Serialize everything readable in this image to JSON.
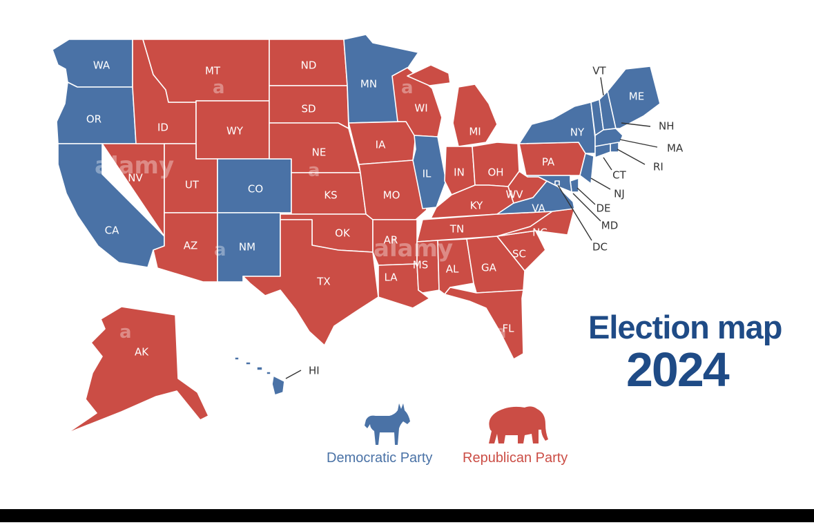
{
  "colors": {
    "democratic": "#4a72a6",
    "republican": "#cb4d45",
    "title": "#1f4b86",
    "border": "#ffffff"
  },
  "title": {
    "line1": "Election map",
    "line2": "2024"
  },
  "legend": {
    "democratic": {
      "label": "Democratic Party",
      "icon": "donkey-icon"
    },
    "republican": {
      "label": "Republican Party",
      "icon": "elephant-icon"
    }
  },
  "states": [
    {
      "code": "WA",
      "party": "D"
    },
    {
      "code": "OR",
      "party": "D"
    },
    {
      "code": "CA",
      "party": "D"
    },
    {
      "code": "NV",
      "party": "R"
    },
    {
      "code": "ID",
      "party": "R"
    },
    {
      "code": "MT",
      "party": "R"
    },
    {
      "code": "WY",
      "party": "R"
    },
    {
      "code": "UT",
      "party": "R"
    },
    {
      "code": "AZ",
      "party": "R"
    },
    {
      "code": "CO",
      "party": "D"
    },
    {
      "code": "NM",
      "party": "D"
    },
    {
      "code": "ND",
      "party": "R"
    },
    {
      "code": "SD",
      "party": "R"
    },
    {
      "code": "NE",
      "party": "R"
    },
    {
      "code": "KS",
      "party": "R"
    },
    {
      "code": "OK",
      "party": "R"
    },
    {
      "code": "TX",
      "party": "R"
    },
    {
      "code": "MN",
      "party": "D"
    },
    {
      "code": "IA",
      "party": "R"
    },
    {
      "code": "MO",
      "party": "R"
    },
    {
      "code": "AR",
      "party": "R"
    },
    {
      "code": "LA",
      "party": "R"
    },
    {
      "code": "WI",
      "party": "R"
    },
    {
      "code": "IL",
      "party": "D"
    },
    {
      "code": "MI",
      "party": "R"
    },
    {
      "code": "IN",
      "party": "R"
    },
    {
      "code": "OH",
      "party": "R"
    },
    {
      "code": "KY",
      "party": "R"
    },
    {
      "code": "TN",
      "party": "R"
    },
    {
      "code": "MS",
      "party": "R"
    },
    {
      "code": "AL",
      "party": "R"
    },
    {
      "code": "GA",
      "party": "R"
    },
    {
      "code": "FL",
      "party": "R"
    },
    {
      "code": "SC",
      "party": "R"
    },
    {
      "code": "NC",
      "party": "R"
    },
    {
      "code": "VA",
      "party": "D"
    },
    {
      "code": "WV",
      "party": "R"
    },
    {
      "code": "PA",
      "party": "R"
    },
    {
      "code": "NY",
      "party": "D"
    },
    {
      "code": "VT",
      "party": "D"
    },
    {
      "code": "NH",
      "party": "D"
    },
    {
      "code": "ME",
      "party": "D"
    },
    {
      "code": "MA",
      "party": "D"
    },
    {
      "code": "RI",
      "party": "D"
    },
    {
      "code": "CT",
      "party": "D"
    },
    {
      "code": "NJ",
      "party": "D"
    },
    {
      "code": "DE",
      "party": "D"
    },
    {
      "code": "MD",
      "party": "D"
    },
    {
      "code": "DC",
      "party": "D"
    },
    {
      "code": "AK",
      "party": "R"
    },
    {
      "code": "HI",
      "party": "D"
    }
  ],
  "watermark": {
    "text": "alamy",
    "letter": "a"
  }
}
